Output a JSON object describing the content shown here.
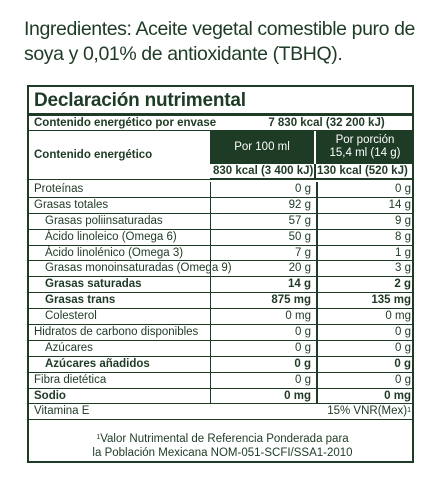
{
  "ingredients": "Ingredientes: Aceite vegetal comestible puro de soya y 0,01% de antioxidante (TBHQ).",
  "panel": {
    "title": "Declaración nutrimental",
    "envase_label": "Contenido energético por envase",
    "envase_value": "7 830 kcal (32 200 kJ)",
    "energy_label": "Contenido energético",
    "col_100": "Por 100 ml",
    "col_porcion_line1": "Por porción",
    "col_porcion_line2": "15,4 ml (14 g)",
    "energy_100": "830 kcal (3 400 kJ)",
    "energy_porcion": "130 kcal (520 kJ)"
  },
  "rows": [
    {
      "name": "Proteínas",
      "v100": "0 g",
      "vporc": "0 g",
      "indent": false,
      "bold": false
    },
    {
      "name": "Grasas totales",
      "v100": "92 g",
      "vporc": "14 g",
      "indent": false,
      "bold": false
    },
    {
      "name": "Grasas poliinsaturadas",
      "v100": "57 g",
      "vporc": "9 g",
      "indent": true,
      "bold": false
    },
    {
      "name": "Ácido linoleico (Omega 6)",
      "v100": "50 g",
      "vporc": "8 g",
      "indent": true,
      "bold": false
    },
    {
      "name": "Ácido linolénico (Omega 3)",
      "v100": "7 g",
      "vporc": "1 g",
      "indent": true,
      "bold": false
    },
    {
      "name": "Grasas monoinsaturadas (Omega 9)",
      "v100": "20 g",
      "vporc": "3 g",
      "indent": true,
      "bold": false
    },
    {
      "name": "Grasas saturadas",
      "v100": "14 g",
      "vporc": "2 g",
      "indent": true,
      "bold": true
    },
    {
      "name": "Grasas trans",
      "v100": "875 mg",
      "vporc": "135 mg",
      "indent": true,
      "bold": true
    },
    {
      "name": "Colesterol",
      "v100": "0 mg",
      "vporc": "0 mg",
      "indent": true,
      "bold": false
    },
    {
      "name": "Hidratos de carbono disponibles",
      "v100": "0 g",
      "vporc": "0 g",
      "indent": false,
      "bold": false
    },
    {
      "name": "Azúcares",
      "v100": "0 g",
      "vporc": "0 g",
      "indent": true,
      "bold": false
    },
    {
      "name": "Azúcares añadidos",
      "v100": "0 g",
      "vporc": "0 g",
      "indent": true,
      "bold": true
    },
    {
      "name": "Fibra dietética",
      "v100": "0 g",
      "vporc": "0 g",
      "indent": false,
      "bold": false
    },
    {
      "name": "Sodio",
      "v100": "0 mg",
      "vporc": "0 mg",
      "indent": false,
      "bold": true
    }
  ],
  "vitamin": {
    "name": "Vitamina E",
    "value": "15% VNR(Mex)",
    "sup": "1"
  },
  "footnote": {
    "sup": "1",
    "line1": "Valor Nutrimental de Referencia Ponderada para",
    "line2": "la Población Mexicana NOM-051-SCFI/SSA1-2010"
  }
}
